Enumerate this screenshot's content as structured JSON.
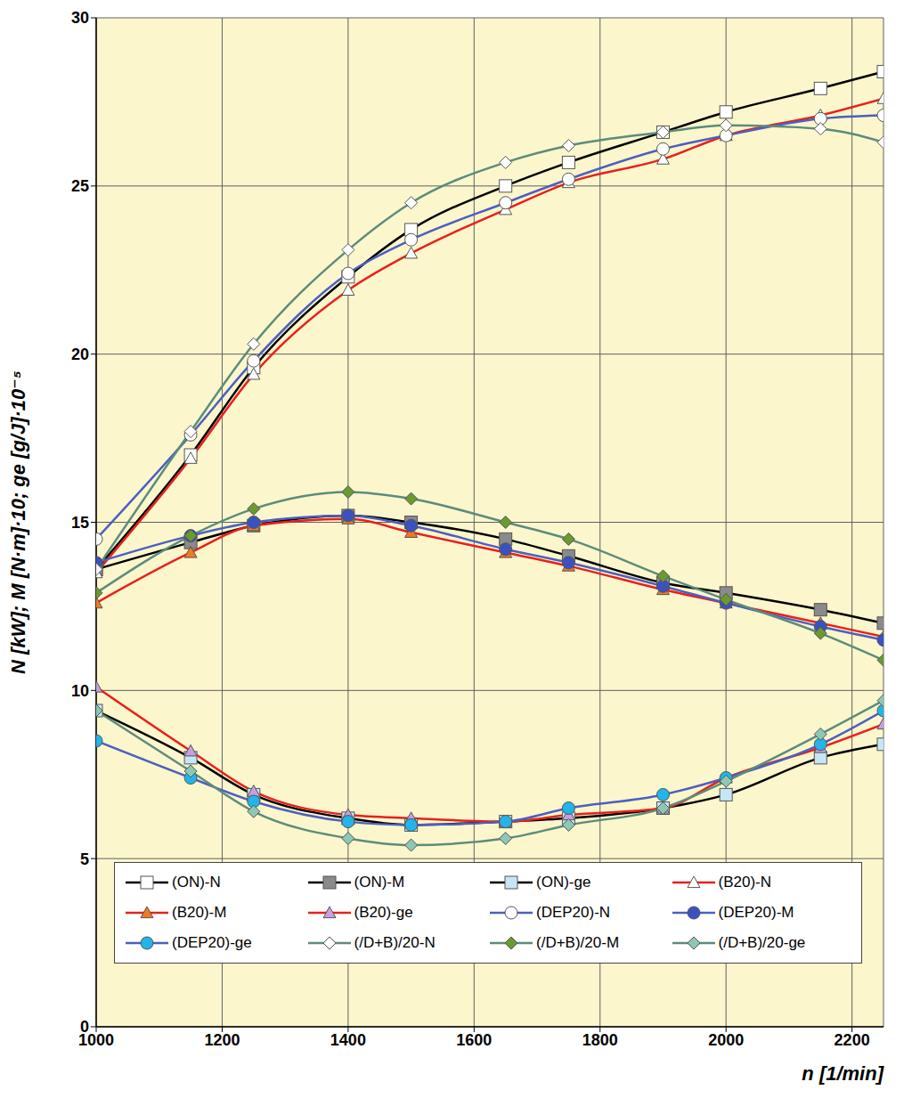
{
  "chart_data": {
    "type": "line",
    "x_label": "n [1/min]",
    "y_label": "N [kW]; M [N·m]·10; ge [g/J]·10⁻⁵",
    "x": [
      1000,
      1150,
      1250,
      1400,
      1500,
      1650,
      1750,
      1900,
      2000,
      2150,
      2250
    ],
    "xlim": [
      1000,
      2250
    ],
    "xticks": [
      1000,
      1200,
      1400,
      1600,
      1800,
      2000,
      2200
    ],
    "ylim": [
      0,
      30
    ],
    "yticks": [
      0,
      5,
      10,
      15,
      20,
      25,
      30
    ],
    "grid": true,
    "legend": "bottom",
    "series": [
      {
        "name": "(ON)-N",
        "color": "#000000",
        "marker": "square",
        "values": [
          13.6,
          17.0,
          19.6,
          22.3,
          23.7,
          25.0,
          25.7,
          26.6,
          27.2,
          27.9,
          28.4
        ]
      },
      {
        "name": "(ON)-M",
        "color": "#000000",
        "marker": "square",
        "values": [
          13.6,
          14.4,
          14.9,
          15.2,
          15.0,
          14.5,
          14.0,
          13.2,
          12.9,
          12.4,
          12.0
        ]
      },
      {
        "name": "(ON)-ge",
        "color": "#000000",
        "marker": "square",
        "values": [
          9.4,
          8.0,
          6.9,
          6.2,
          6.0,
          6.1,
          6.2,
          6.5,
          6.9,
          8.0,
          8.4
        ]
      },
      {
        "name": "(B20)-N",
        "color": "#e8201c",
        "marker": "triangle",
        "values": [
          13.5,
          16.9,
          19.4,
          21.9,
          23.0,
          24.3,
          25.1,
          25.8,
          26.5,
          27.1,
          27.6
        ]
      },
      {
        "name": "(B20)-M",
        "color": "#e8201c",
        "marker": "triangle",
        "values": [
          12.6,
          14.1,
          14.9,
          15.1,
          14.7,
          14.1,
          13.7,
          13.0,
          12.6,
          12.0,
          11.6
        ]
      },
      {
        "name": "(B20)-ge",
        "color": "#e8201c",
        "marker": "triangle",
        "values": [
          10.1,
          8.2,
          7.0,
          6.3,
          6.2,
          6.1,
          6.3,
          6.5,
          7.4,
          8.3,
          9.0
        ]
      },
      {
        "name": "(DEP20)-N",
        "color": "#4c5fc0",
        "marker": "circle",
        "values": [
          14.5,
          17.6,
          19.8,
          22.4,
          23.4,
          24.5,
          25.2,
          26.1,
          26.5,
          27.0,
          27.1
        ]
      },
      {
        "name": "(DEP20)-M",
        "color": "#4c5fc0",
        "marker": "circle",
        "values": [
          13.8,
          14.6,
          15.0,
          15.2,
          14.9,
          14.2,
          13.8,
          13.1,
          12.6,
          11.9,
          11.5
        ]
      },
      {
        "name": "(DEP20)-ge",
        "color": "#4c5fc0",
        "marker": "circle",
        "values": [
          8.5,
          7.4,
          6.7,
          6.1,
          6.0,
          6.1,
          6.5,
          6.9,
          7.4,
          8.4,
          9.4
        ]
      },
      {
        "name": "(/D+B)/20-N",
        "color": "#5c8c7c",
        "marker": "diamond",
        "values": [
          13.6,
          17.7,
          20.3,
          23.1,
          24.5,
          25.7,
          26.2,
          26.6,
          26.8,
          26.7,
          26.3
        ]
      },
      {
        "name": "(/D+B)/20-M",
        "color": "#5c8c7c",
        "marker": "diamond",
        "values": [
          12.9,
          14.6,
          15.4,
          15.9,
          15.7,
          15.0,
          14.5,
          13.4,
          12.7,
          11.7,
          10.9
        ]
      },
      {
        "name": "(/D+B)/20-ge",
        "color": "#5c8c7c",
        "marker": "diamond",
        "values": [
          9.4,
          7.6,
          6.4,
          5.6,
          5.4,
          5.6,
          6.0,
          6.5,
          7.3,
          8.7,
          9.7
        ]
      }
    ]
  }
}
